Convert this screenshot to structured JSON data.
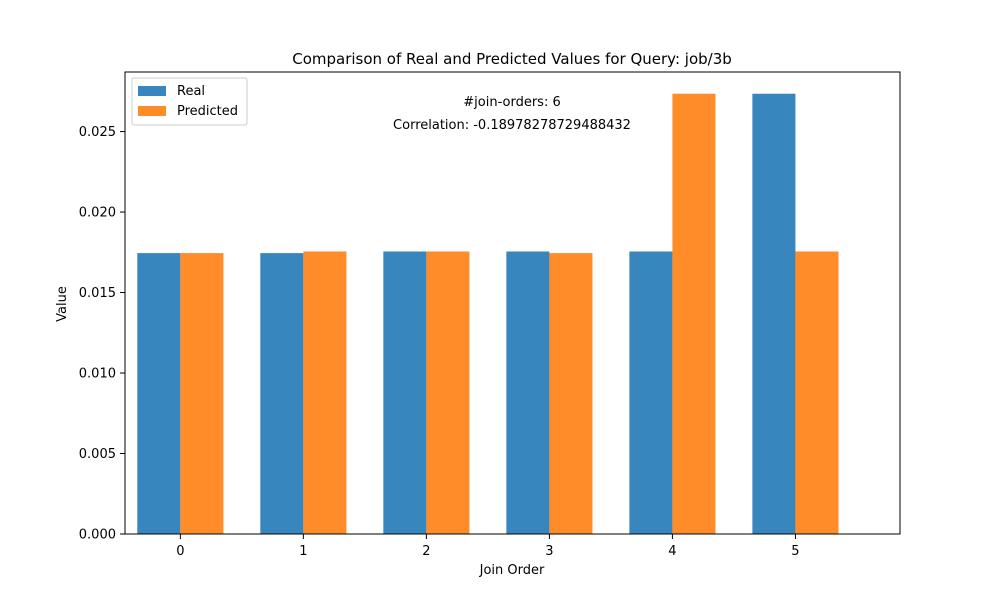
{
  "chart_data": {
    "type": "bar",
    "title": "Comparison of Real and Predicted Values for Query: job/3b",
    "xlabel": "Join Order",
    "ylabel": "Value",
    "categories": [
      "0",
      "1",
      "2",
      "3",
      "4",
      "5"
    ],
    "series": [
      {
        "name": "Real",
        "color": "#3786bd",
        "values": [
          0.01745,
          0.01745,
          0.01755,
          0.01755,
          0.01755,
          0.02735
        ]
      },
      {
        "name": "Predicted",
        "color": "#ff8c29",
        "values": [
          0.01745,
          0.01755,
          0.01755,
          0.01745,
          0.02735,
          0.01755
        ]
      }
    ],
    "ylim": [
      0,
      0.0287
    ],
    "yticks": [
      0.0,
      0.005,
      0.01,
      0.015,
      0.02,
      0.025
    ],
    "ytick_labels": [
      "0.000",
      "0.005",
      "0.010",
      "0.015",
      "0.020",
      "0.025"
    ],
    "legend_position": "top-left",
    "grid": false,
    "annotations": [
      "#join-orders: 6",
      "Correlation: -0.18978278729488432"
    ]
  }
}
